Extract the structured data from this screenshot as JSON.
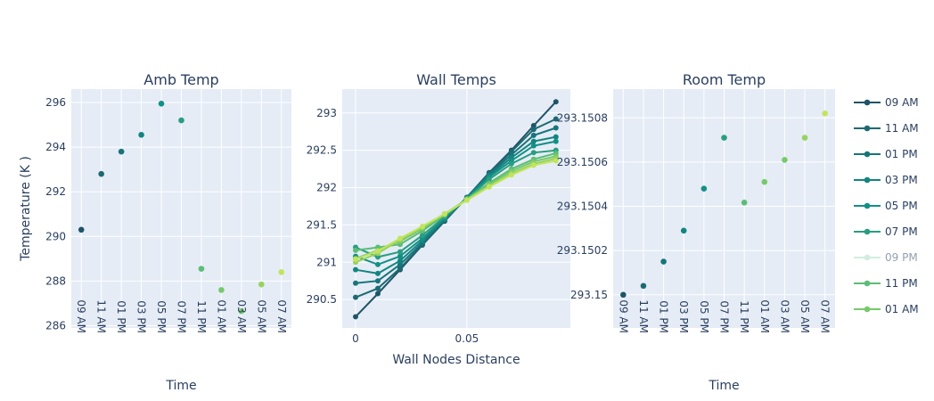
{
  "colors": {
    "plot_bg": "#e5ecf6",
    "grid": "#ffffff",
    "text": "#2a3f5f",
    "palette": [
      "#1f5466",
      "#1d6a72",
      "#17757a",
      "#138580",
      "#139086",
      "#2a9d80",
      "#a5dcc0",
      "#5bbd76",
      "#77c96c",
      "#95d35f",
      "#c2e45b"
    ]
  },
  "legend": {
    "entries": [
      {
        "label": "09 AM",
        "color_index": 0,
        "dimmed": false
      },
      {
        "label": "11 AM",
        "color_index": 1,
        "dimmed": false
      },
      {
        "label": "01 PM",
        "color_index": 2,
        "dimmed": false
      },
      {
        "label": "03 PM",
        "color_index": 3,
        "dimmed": false
      },
      {
        "label": "05 PM",
        "color_index": 4,
        "dimmed": false
      },
      {
        "label": "07 PM",
        "color_index": 5,
        "dimmed": false
      },
      {
        "label": "09 PM",
        "color_index": 6,
        "dimmed": true
      },
      {
        "label": "11 PM",
        "color_index": 7,
        "dimmed": false
      },
      {
        "label": "01 AM",
        "color_index": 8,
        "dimmed": false
      }
    ]
  },
  "chart_data": [
    {
      "type": "scatter",
      "title": "Amb Temp",
      "xlabel": "Time",
      "ylabel": "Temperature (K )",
      "categories": [
        "09 AM",
        "11 AM",
        "01 PM",
        "03 PM",
        "05 PM",
        "07 PM",
        "11 PM",
        "01 AM",
        "03 AM",
        "05 AM",
        "07 AM"
      ],
      "values": [
        290.3,
        292.8,
        293.8,
        294.55,
        295.95,
        295.2,
        288.55,
        287.6,
        286.65,
        287.85,
        288.4
      ],
      "color_index": [
        0,
        1,
        2,
        3,
        4,
        5,
        7,
        8,
        8,
        9,
        10
      ],
      "yticks": [
        "286",
        "288",
        "290",
        "292",
        "294",
        "296"
      ],
      "ylim": [
        285.9,
        296.6
      ],
      "grid": true
    },
    {
      "type": "line",
      "title": "Wall Temps",
      "xlabel": "Wall Nodes Distance",
      "ylabel": "",
      "x": [
        0,
        0.01,
        0.02,
        0.03,
        0.04,
        0.05,
        0.06,
        0.07,
        0.08,
        0.09
      ],
      "xticks": [
        "0",
        "0.05"
      ],
      "yticks": [
        "290.5",
        "291",
        "291.5",
        "292",
        "292.5",
        "293"
      ],
      "xlim": [
        -0.006,
        0.0965
      ],
      "ylim": [
        290.12,
        293.32
      ],
      "grid": true,
      "series": [
        {
          "color_index": 0,
          "values": [
            290.27,
            290.58,
            290.9,
            291.23,
            291.55,
            291.87,
            292.2,
            292.5,
            292.83,
            293.15
          ]
        },
        {
          "color_index": 1,
          "values": [
            290.53,
            290.65,
            290.92,
            291.24,
            291.56,
            291.87,
            292.19,
            292.48,
            292.78,
            292.92
          ]
        },
        {
          "color_index": 2,
          "values": [
            290.72,
            290.75,
            290.97,
            291.26,
            291.57,
            291.87,
            292.18,
            292.44,
            292.7,
            292.8
          ]
        },
        {
          "color_index": 3,
          "values": [
            290.9,
            290.85,
            291.02,
            291.29,
            291.58,
            291.86,
            292.16,
            292.4,
            292.62,
            292.68
          ]
        },
        {
          "color_index": 4,
          "values": [
            291.08,
            290.97,
            291.08,
            291.32,
            291.59,
            291.86,
            292.14,
            292.36,
            292.56,
            292.62
          ]
        },
        {
          "color_index": 5,
          "values": [
            291.2,
            291.07,
            291.14,
            291.36,
            291.61,
            291.85,
            292.11,
            292.32,
            292.47,
            292.5
          ]
        },
        {
          "color_index": 7,
          "values": [
            291.16,
            291.2,
            291.24,
            291.42,
            291.63,
            291.85,
            292.06,
            292.25,
            292.38,
            292.46
          ]
        },
        {
          "color_index": 8,
          "values": [
            291.05,
            291.16,
            291.28,
            291.45,
            291.64,
            291.84,
            292.04,
            292.22,
            292.35,
            292.42
          ]
        },
        {
          "color_index": 9,
          "values": [
            291.0,
            291.12,
            291.3,
            291.47,
            291.65,
            291.84,
            292.02,
            292.19,
            292.32,
            292.39
          ]
        },
        {
          "color_index": 10,
          "values": [
            291.04,
            291.15,
            291.32,
            291.48,
            291.65,
            291.83,
            292.01,
            292.17,
            292.3,
            292.36
          ]
        }
      ]
    },
    {
      "type": "scatter",
      "title": "Room Temp",
      "xlabel": "Time",
      "ylabel": "",
      "categories": [
        "09 AM",
        "11 AM",
        "01 PM",
        "03 PM",
        "05 PM",
        "07 PM",
        "11 PM",
        "01 AM",
        "03 AM",
        "05 AM",
        "07 AM"
      ],
      "values": [
        293.15,
        293.15004,
        293.15015,
        293.15029,
        293.15048,
        293.15071,
        293.1504169,
        293.15051,
        293.15061,
        293.15071,
        293.15082
      ],
      "color_index": [
        0,
        1,
        2,
        3,
        4,
        5,
        7,
        8,
        8,
        9,
        10
      ],
      "yticks": [
        "293.15",
        "293.1502",
        "293.1504",
        "293.1506",
        "293.1508"
      ],
      "ylim": [
        293.14985,
        293.15093
      ],
      "grid": true
    }
  ]
}
